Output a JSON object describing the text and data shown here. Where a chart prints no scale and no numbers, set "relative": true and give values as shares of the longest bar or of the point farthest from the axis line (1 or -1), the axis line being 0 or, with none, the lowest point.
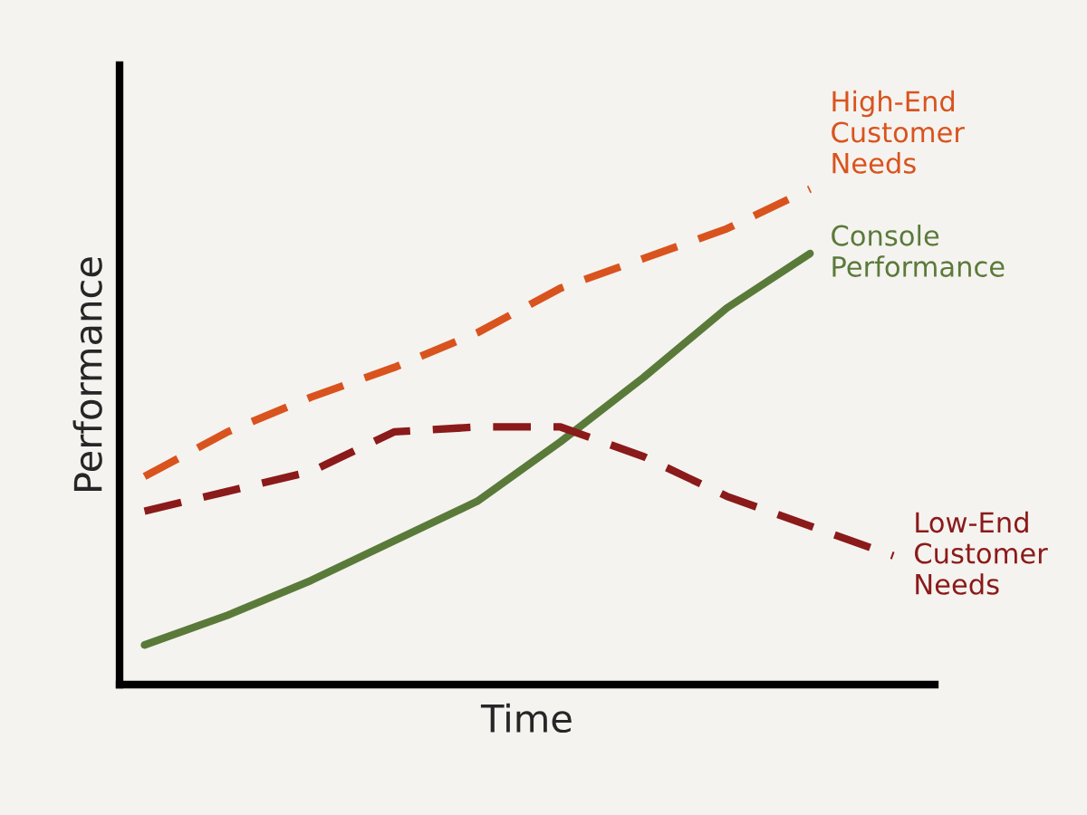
{
  "chart_data": {
    "type": "line",
    "relative": true,
    "xlabel": "Time",
    "ylabel": "Performance",
    "categories": [
      null,
      null,
      null,
      null,
      null,
      null,
      null,
      null,
      null,
      null
    ],
    "series": [
      {
        "name": "High-End\nCustomer\nNeeds",
        "color": "#d9531e",
        "line_style": "dashed",
        "values": [
          0.42,
          0.51,
          0.58,
          0.64,
          0.71,
          0.8,
          0.86,
          0.92,
          1.0,
          null
        ]
      },
      {
        "name": "Console\nPerformance",
        "color": "#5a7a3a",
        "line_style": "solid",
        "values": [
          0.08,
          0.14,
          0.21,
          0.29,
          0.37,
          0.49,
          0.62,
          0.76,
          0.87,
          null
        ]
      },
      {
        "name": "Low-End\nCustomer\nNeeds",
        "color": "#8b1a1a",
        "line_style": "dashed",
        "values": [
          0.35,
          0.39,
          0.43,
          0.51,
          0.52,
          0.52,
          0.46,
          0.38,
          0.32,
          0.26
        ]
      }
    ],
    "grid": false,
    "legend": false
  }
}
